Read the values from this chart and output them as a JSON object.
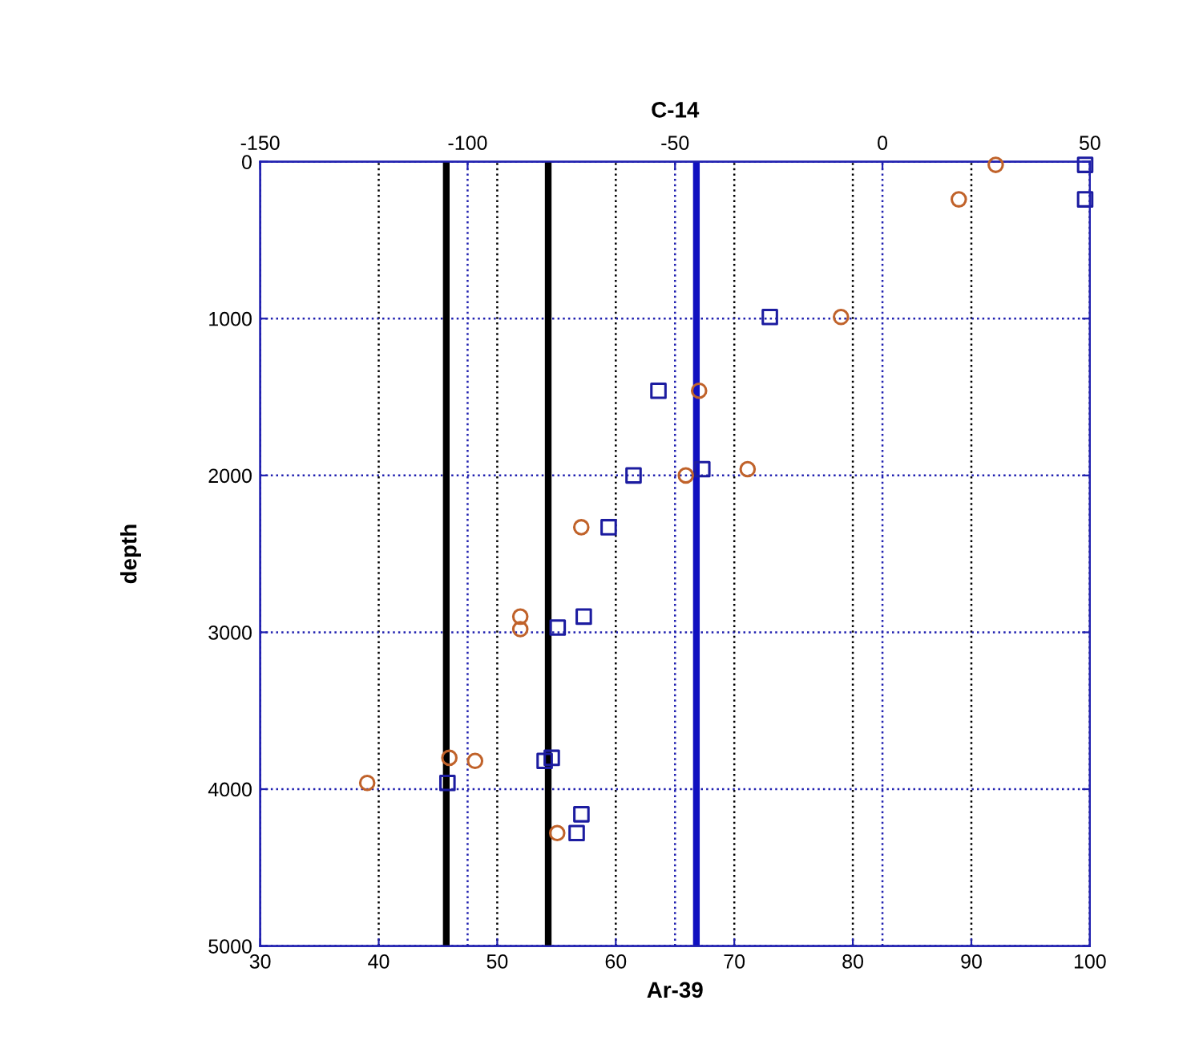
{
  "chart_data": {
    "type": "scatter",
    "xlabel": "Ar-39",
    "x2label": "C-14",
    "ylabel": "depth",
    "xlim": [
      30,
      100
    ],
    "xticks": [
      30,
      40,
      50,
      60,
      70,
      80,
      90,
      100
    ],
    "x2lim": [
      -150,
      50
    ],
    "x2ticks": [
      -150,
      -100,
      -50,
      0,
      50
    ],
    "ylim": [
      5000,
      0
    ],
    "yticks": [
      0,
      1000,
      2000,
      3000,
      4000,
      5000
    ],
    "grid": true,
    "series": [
      {
        "color": "#1c1ca0",
        "marker": "square",
        "x": [
          99.6,
          99.6,
          73.0,
          63.6,
          61.5,
          67.3,
          59.4,
          57.3,
          55.1,
          54.6,
          54.0,
          45.8,
          57.1,
          56.7
        ],
        "values": [
          20,
          240,
          990,
          1460,
          2000,
          1960,
          2330,
          2900,
          2970,
          3800,
          3820,
          3960,
          4160,
          4280
        ]
      },
      {
        "color": "#c0622a",
        "marker": "circle",
        "axis": "x2",
        "x": [
          27.3,
          18.4,
          -10.0,
          -44.2,
          -47.4,
          -32.5,
          -72.6,
          -87.3,
          -87.3,
          -104.4,
          -98.2,
          -124.2,
          -78.4
        ],
        "values": [
          20,
          240,
          990,
          1460,
          2000,
          1960,
          2330,
          2900,
          2980,
          3800,
          3820,
          3960,
          4280
        ]
      }
    ],
    "ref_lines": [
      {
        "axis": "x",
        "value": 45.7,
        "color": "#000000",
        "line_style": "solid"
      },
      {
        "axis": "x",
        "value": 54.3,
        "color": "#000000",
        "line_style": "solid"
      },
      {
        "axis": "x",
        "value": 66.8,
        "color": "#1010c0",
        "line_style": "solid"
      }
    ]
  }
}
